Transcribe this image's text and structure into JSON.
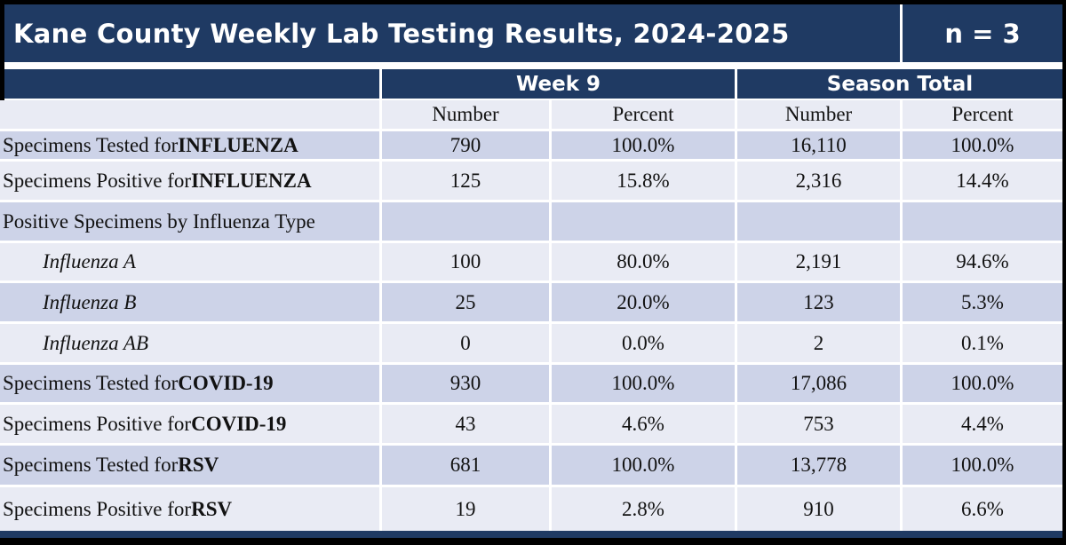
{
  "colors": {
    "navy": "#1F3A63",
    "row_shaded": "#CDD3E8",
    "row_light": "#E9EBF4",
    "border": "#FFFFFF",
    "frame": "#000000",
    "header_text": "#FFFFFF",
    "body_text": "#121212"
  },
  "title_bar": {
    "title": "Kane County Weekly Lab Testing Results, 2024-2025",
    "n_label": "n = 3"
  },
  "header": {
    "week": "Week 9",
    "season": "Season Total"
  },
  "table": {
    "subheader": [
      "Number",
      "Percent",
      "Number",
      "Percent"
    ],
    "rows": [
      {
        "label": "Specimens Tested for ",
        "bold": "INFLUENZA",
        "cells": [
          "790",
          "100.0%",
          "16,110",
          "100.0%"
        ]
      },
      {
        "label": "Specimens Positive for ",
        "bold": "INFLUENZA",
        "cells": [
          "125",
          "15.8%",
          "2,316",
          "14.4%"
        ]
      },
      {
        "label": "Positive Specimens by Influenza Type",
        "bold": "",
        "cells": [
          "",
          "",
          "",
          ""
        ]
      },
      {
        "label": "Influenza A",
        "bold": "",
        "cells": [
          "100",
          "80.0%",
          "2,191",
          "94.6%"
        ]
      },
      {
        "label": "Influenza B",
        "bold": "",
        "cells": [
          "25",
          "20.0%",
          "123",
          "5.3%"
        ]
      },
      {
        "label": "Influenza AB",
        "bold": "",
        "cells": [
          "0",
          "0.0%",
          "2",
          "0.1%"
        ]
      },
      {
        "label": "Specimens Tested for ",
        "bold": "COVID-19",
        "cells": [
          "930",
          "100.0%",
          "17,086",
          "100.0%"
        ]
      },
      {
        "label": "Specimens Positive for ",
        "bold": "COVID-19",
        "cells": [
          "43",
          "4.6%",
          "753",
          "4.4%"
        ]
      },
      {
        "label": "Specimens Tested for ",
        "bold": "RSV",
        "cells": [
          "681",
          "100.0%",
          "13,778",
          "100.0%"
        ]
      },
      {
        "label": "Specimens Positive for ",
        "bold": "RSV",
        "cells": [
          "19",
          "2.8%",
          "910",
          "6.6%"
        ]
      }
    ]
  }
}
